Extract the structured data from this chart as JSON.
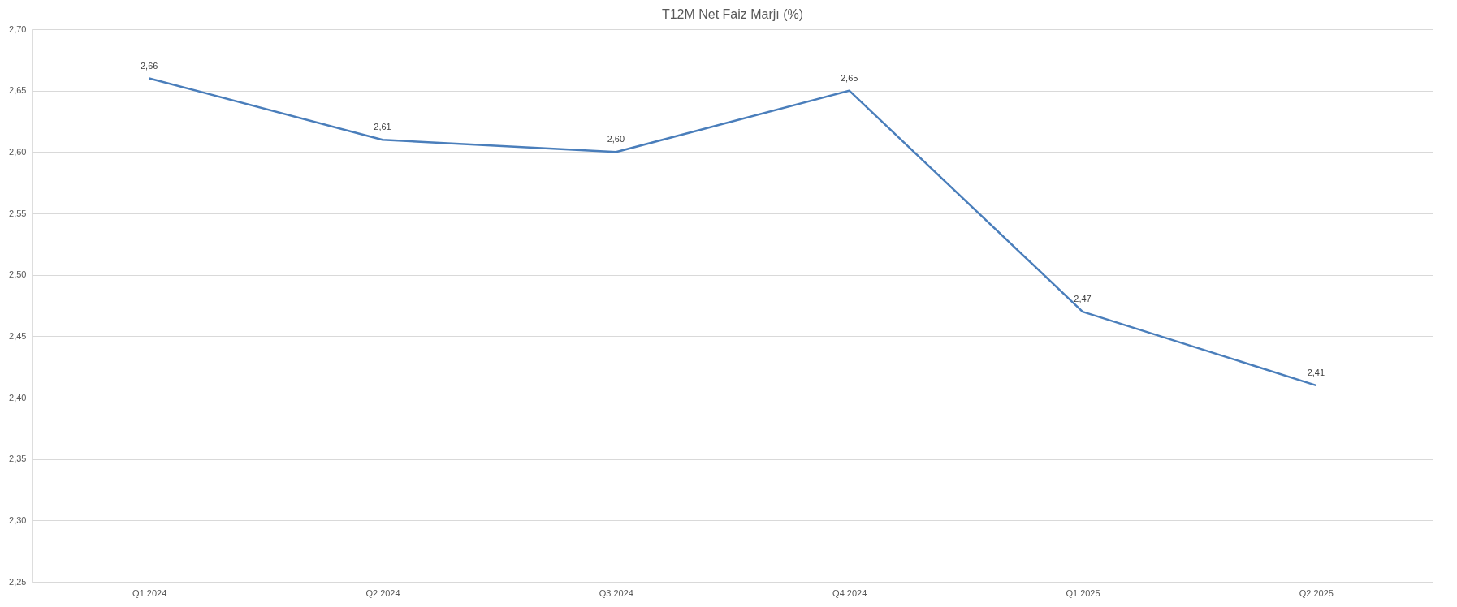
{
  "chart_data": {
    "type": "line",
    "title": "T12M Net Faiz Marjı (%)",
    "categories": [
      "Q1 2024",
      "Q2 2024",
      "Q3 2024",
      "Q4 2024",
      "Q1 2025",
      "Q2 2025"
    ],
    "series": [
      {
        "color": "#4a7ebb",
        "values": [
          2.66,
          2.61,
          2.6,
          2.65,
          2.47,
          2.41
        ],
        "value_labels": [
          "2,66",
          "2,61",
          "2,60",
          "2,65",
          "2,47",
          "2,41"
        ]
      }
    ],
    "ylim": [
      2.25,
      2.7
    ],
    "yticks": [
      {
        "value": 2.25,
        "label": "2,25"
      },
      {
        "value": 2.3,
        "label": "2,30"
      },
      {
        "value": 2.35,
        "label": "2,35"
      },
      {
        "value": 2.4,
        "label": "2,40"
      },
      {
        "value": 2.45,
        "label": "2,45"
      },
      {
        "value": 2.5,
        "label": "2,50"
      },
      {
        "value": 2.55,
        "label": "2,55"
      },
      {
        "value": 2.6,
        "label": "2,60"
      },
      {
        "value": 2.65,
        "label": "2,65"
      },
      {
        "value": 2.7,
        "label": "2,70"
      }
    ],
    "grid": "y",
    "marker": "none",
    "line_style": "solid"
  }
}
